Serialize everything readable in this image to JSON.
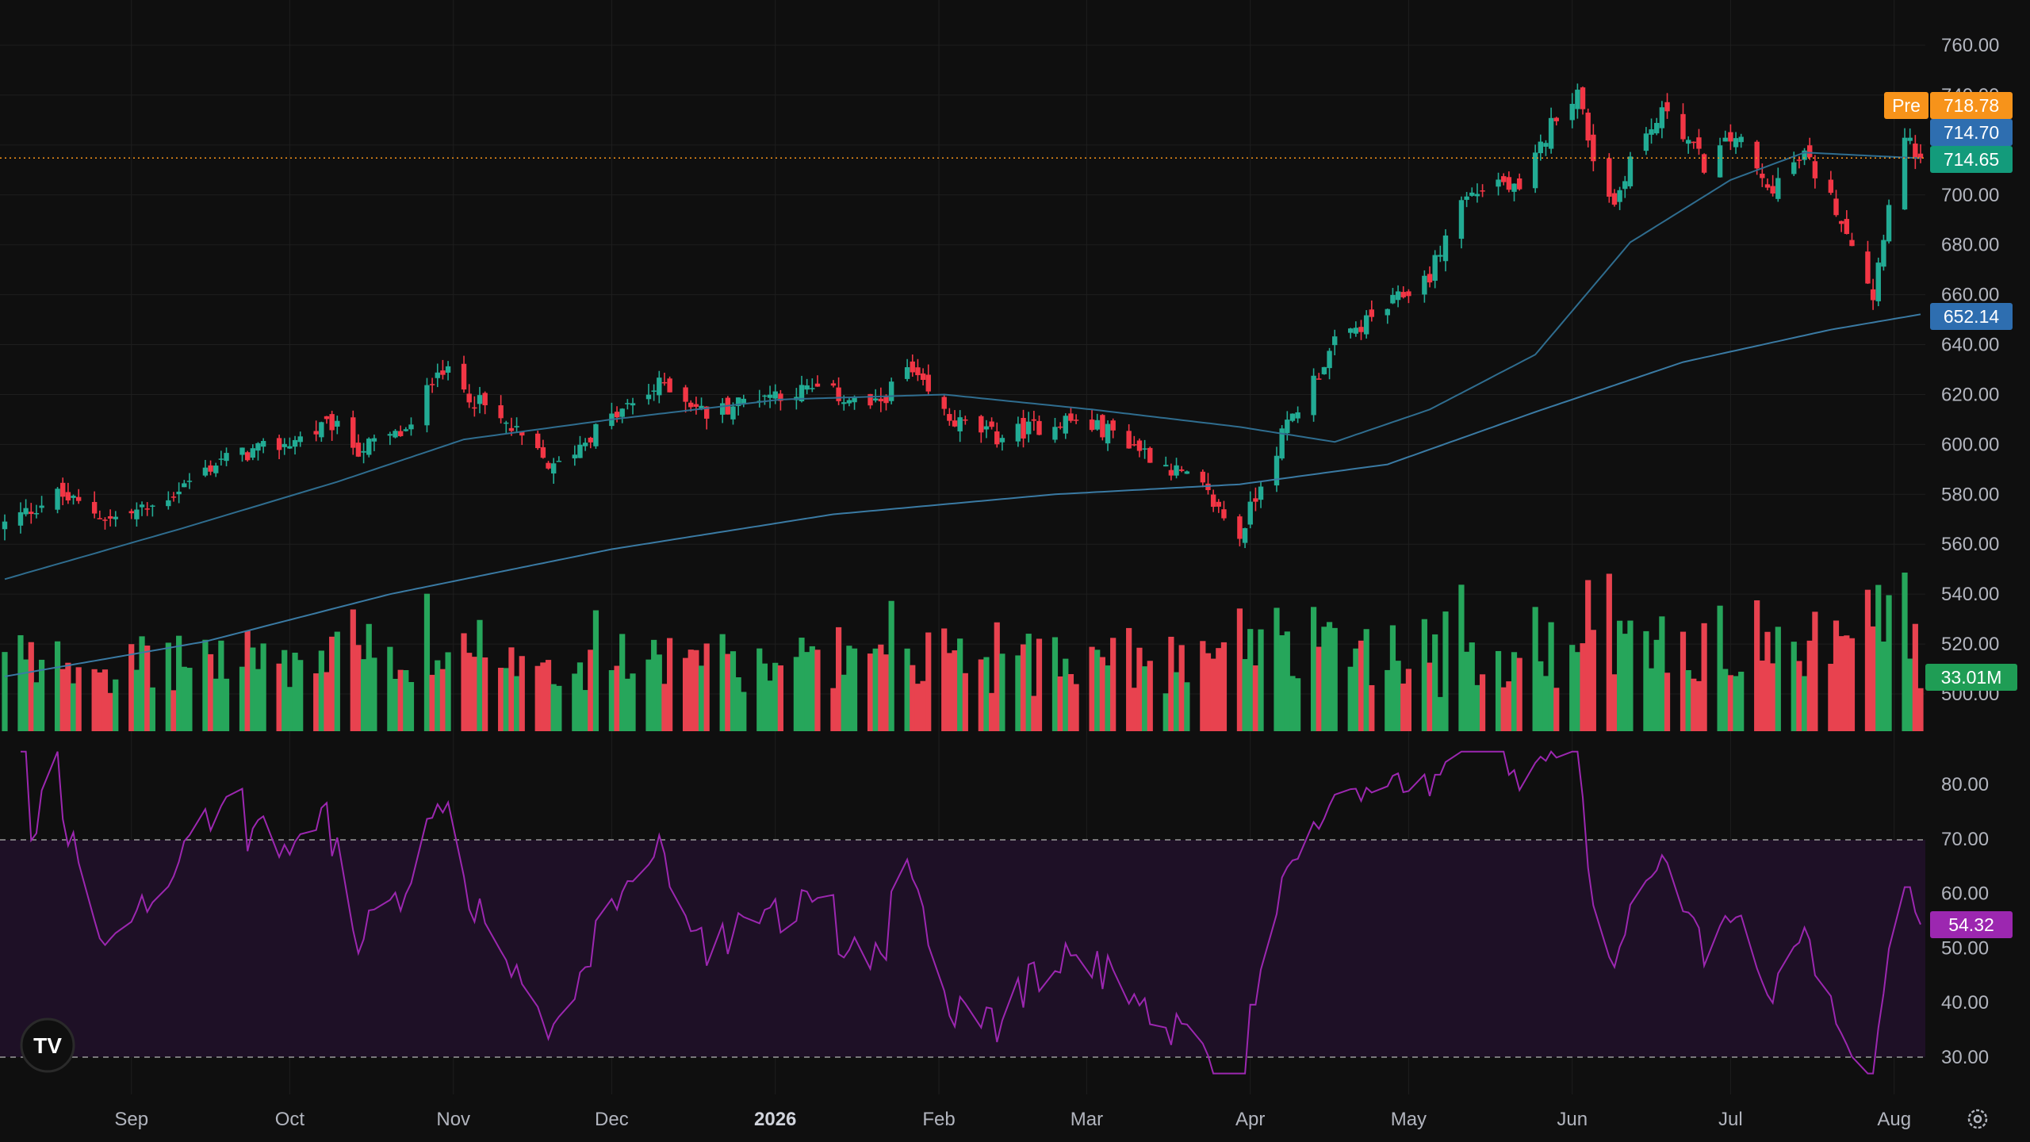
{
  "theme": {
    "background": "#0f0f0f",
    "up_color": "#22ab94",
    "down_color": "#f23645",
    "volume_up": "#26a65b",
    "volume_down": "#e8424f",
    "ma50_color": "#2f6d8f",
    "ma200_color": "#3a7aa3",
    "rsi_color": "#9c27b0",
    "rsi_band": "#1e1026",
    "premarket_color": "#f7931a",
    "grid_color": "#1e1e1e"
  },
  "price_axis": {
    "ticks": [
      "760.00",
      "740.00",
      "720.00",
      "700.00",
      "680.00",
      "660.00",
      "640.00",
      "620.00",
      "600.00",
      "580.00",
      "560.00",
      "540.00",
      "520.00",
      "500.00"
    ],
    "premarket_label": "Pre",
    "premarket_value": "718.78",
    "ma50_value": "714.70",
    "last_value": "714.65",
    "ma200_value": "652.14",
    "volume_value": "33.01M"
  },
  "rsi_axis": {
    "ticks": [
      "80.00",
      "70.00",
      "60.00",
      "50.00",
      "40.00",
      "30.00"
    ],
    "value": "54.32"
  },
  "time_axis": {
    "labels": [
      {
        "text": "Sep",
        "year": false,
        "date": "2025-09-01"
      },
      {
        "text": "Oct",
        "year": false,
        "date": "2025-10-01"
      },
      {
        "text": "Nov",
        "year": false,
        "date": "2025-11-01"
      },
      {
        "text": "Dec",
        "year": false,
        "date": "2025-12-01"
      },
      {
        "text": "2026",
        "year": true,
        "date": "2026-01-01"
      },
      {
        "text": "Feb",
        "year": false,
        "date": "2026-02-01"
      },
      {
        "text": "Mar",
        "year": false,
        "date": "2026-03-01"
      },
      {
        "text": "Apr",
        "year": false,
        "date": "2026-04-01"
      },
      {
        "text": "May",
        "year": false,
        "date": "2026-05-01"
      },
      {
        "text": "Jun",
        "year": false,
        "date": "2026-06-01"
      },
      {
        "text": "Jul",
        "year": false,
        "date": "2026-07-01"
      },
      {
        "text": "Aug",
        "year": false,
        "date": "2026-08-01"
      }
    ]
  },
  "logo": {
    "text": "TV"
  },
  "icons": {
    "settings": "gear-icon",
    "logo": "tradingview-logo-icon"
  },
  "chart_data": {
    "type": "candlestick",
    "x_range": [
      "2025-08-08",
      "2026-08-06"
    ],
    "price_range": [
      480,
      768
    ],
    "rsi_range": [
      25,
      88
    ],
    "rsi_levels": [
      30,
      70
    ],
    "close_anchors": [
      [
        "2025-08-08",
        568
      ],
      [
        "2025-08-18",
        580
      ],
      [
        "2025-08-28",
        570
      ],
      [
        "2025-09-05",
        575
      ],
      [
        "2025-09-18",
        594
      ],
      [
        "2025-09-30",
        600
      ],
      [
        "2025-10-09",
        608
      ],
      [
        "2025-10-14",
        598
      ],
      [
        "2025-10-24",
        606
      ],
      [
        "2025-10-29",
        632
      ],
      [
        "2025-11-04",
        620
      ],
      [
        "2025-11-13",
        604
      ],
      [
        "2025-11-20",
        590
      ],
      [
        "2025-11-28",
        606
      ],
      [
        "2025-12-11",
        625
      ],
      [
        "2025-12-19",
        612
      ],
      [
        "2025-12-29",
        620
      ],
      [
        "2026-01-09",
        622
      ],
      [
        "2026-01-20",
        615
      ],
      [
        "2026-01-26",
        630
      ],
      [
        "2026-02-03",
        610
      ],
      [
        "2026-02-12",
        603
      ],
      [
        "2026-02-25",
        610
      ],
      [
        "2026-03-06",
        605
      ],
      [
        "2026-03-16",
        592
      ],
      [
        "2026-03-23",
        582
      ],
      [
        "2026-03-30",
        563
      ],
      [
        "2026-04-03",
        585
      ],
      [
        "2026-04-08",
        608
      ],
      [
        "2026-04-17",
        640
      ],
      [
        "2026-04-27",
        655
      ],
      [
        "2026-05-05",
        668
      ],
      [
        "2026-05-11",
        698
      ],
      [
        "2026-05-18",
        706
      ],
      [
        "2026-05-22",
        700
      ],
      [
        "2026-05-29",
        733
      ],
      [
        "2026-06-02",
        741
      ],
      [
        "2026-06-05",
        715
      ],
      [
        "2026-06-09",
        696
      ],
      [
        "2026-06-12",
        715
      ],
      [
        "2026-06-19",
        735
      ],
      [
        "2026-06-26",
        712
      ],
      [
        "2026-07-02",
        724
      ],
      [
        "2026-07-08",
        702
      ],
      [
        "2026-07-15",
        716
      ],
      [
        "2026-07-21",
        695
      ],
      [
        "2026-07-24",
        682
      ],
      [
        "2026-07-28",
        660
      ],
      [
        "2026-07-31",
        698
      ],
      [
        "2026-08-03",
        722
      ],
      [
        "2026-08-06",
        714.65
      ]
    ],
    "ma50_anchors": [
      [
        "2025-08-08",
        546
      ],
      [
        "2025-09-10",
        566
      ],
      [
        "2025-10-10",
        585
      ],
      [
        "2025-11-03",
        602
      ],
      [
        "2025-12-01",
        610
      ],
      [
        "2026-01-02",
        618
      ],
      [
        "2026-02-02",
        620
      ],
      [
        "2026-03-02",
        614
      ],
      [
        "2026-03-30",
        607
      ],
      [
        "2026-04-17",
        601
      ],
      [
        "2026-05-05",
        614
      ],
      [
        "2026-05-25",
        636
      ],
      [
        "2026-06-12",
        681
      ],
      [
        "2026-07-01",
        706
      ],
      [
        "2026-07-15",
        717
      ],
      [
        "2026-08-06",
        714.7
      ]
    ],
    "ma200_anchors": [
      [
        "2025-08-08",
        507
      ],
      [
        "2025-09-15",
        521
      ],
      [
        "2025-10-20",
        540
      ],
      [
        "2025-12-01",
        558
      ],
      [
        "2026-01-12",
        572
      ],
      [
        "2026-02-23",
        580
      ],
      [
        "2026-03-30",
        584
      ],
      [
        "2026-04-27",
        592
      ],
      [
        "2026-05-25",
        613
      ],
      [
        "2026-06-22",
        633
      ],
      [
        "2026-07-20",
        646
      ],
      [
        "2026-08-06",
        652.14
      ]
    ],
    "volume": {
      "range_millions": [
        0,
        170
      ],
      "last_millions": 33.01
    },
    "rsi_last": 54.32
  }
}
